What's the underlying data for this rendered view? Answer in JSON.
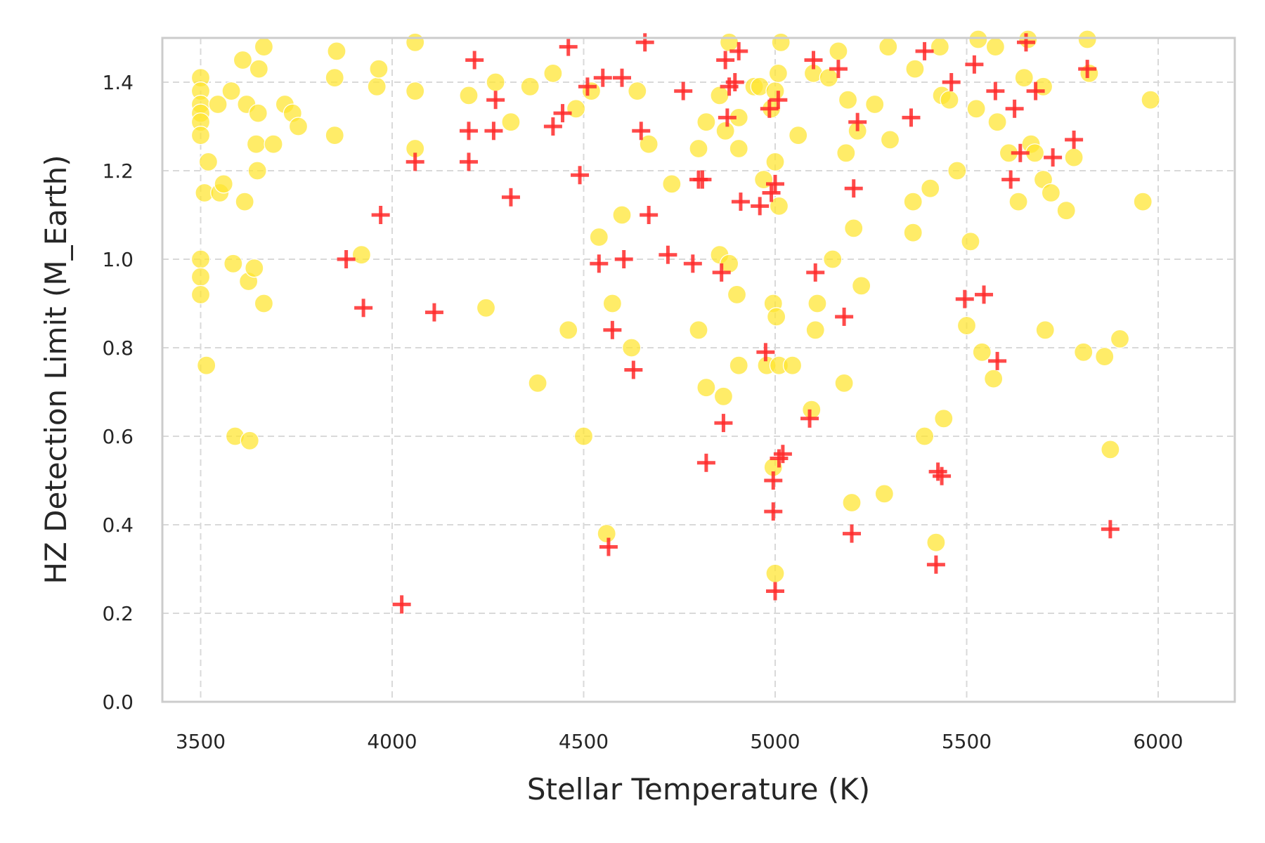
{
  "chart_data": {
    "type": "scatter",
    "xlabel": "Stellar Temperature (K)",
    "ylabel": "HZ Detection Limit (M_Earth)",
    "xlim": [
      3400,
      6200
    ],
    "ylim": [
      0.0,
      1.5
    ],
    "xticks": [
      3500,
      4000,
      4500,
      5000,
      5500,
      6000
    ],
    "yticks": [
      0.0,
      0.2,
      0.4,
      0.6,
      0.8,
      1.0,
      1.2,
      1.4
    ],
    "ytick_labels": [
      "0.0",
      "0.2",
      "0.4",
      "0.6",
      "0.8",
      "1.0",
      "1.2",
      "1.4"
    ],
    "grid": true,
    "series": [
      {
        "marker": "circle",
        "color": "#ffe52e",
        "points": [
          [
            3500,
            1.41
          ],
          [
            3500,
            1.38
          ],
          [
            3500,
            1.35
          ],
          [
            3500,
            1.33
          ],
          [
            3500,
            1.31
          ],
          [
            3500,
            1.28
          ],
          [
            3500,
            1.0
          ],
          [
            3500,
            0.96
          ],
          [
            3500,
            0.92
          ],
          [
            3510,
            1.15
          ],
          [
            3515,
            0.76
          ],
          [
            3520,
            1.22
          ],
          [
            3545,
            1.35
          ],
          [
            3550,
            1.15
          ],
          [
            3560,
            1.17
          ],
          [
            3580,
            1.38
          ],
          [
            3585,
            0.99
          ],
          [
            3590,
            0.6
          ],
          [
            3610,
            1.45
          ],
          [
            3615,
            1.13
          ],
          [
            3620,
            1.35
          ],
          [
            3625,
            0.95
          ],
          [
            3628,
            0.59
          ],
          [
            3640,
            0.98
          ],
          [
            3645,
            1.26
          ],
          [
            3648,
            1.2
          ],
          [
            3650,
            1.33
          ],
          [
            3652,
            1.43
          ],
          [
            3665,
            1.48
          ],
          [
            3665,
            0.9
          ],
          [
            3690,
            1.26
          ],
          [
            3720,
            1.35
          ],
          [
            3740,
            1.33
          ],
          [
            3755,
            1.3
          ],
          [
            3850,
            1.41
          ],
          [
            3855,
            1.47
          ],
          [
            3850,
            1.28
          ],
          [
            3920,
            1.01
          ],
          [
            3960,
            1.39
          ],
          [
            3965,
            1.43
          ],
          [
            4060,
            1.49
          ],
          [
            4060,
            1.38
          ],
          [
            4060,
            1.25
          ],
          [
            4200,
            1.37
          ],
          [
            4245,
            0.89
          ],
          [
            4270,
            1.4
          ],
          [
            4310,
            1.31
          ],
          [
            4360,
            1.39
          ],
          [
            4380,
            0.72
          ],
          [
            4420,
            1.42
          ],
          [
            4460,
            0.84
          ],
          [
            4480,
            1.34
          ],
          [
            4500,
            0.6
          ],
          [
            4520,
            1.38
          ],
          [
            4540,
            1.05
          ],
          [
            4560,
            0.38
          ],
          [
            4575,
            0.9
          ],
          [
            4600,
            1.1
          ],
          [
            4625,
            0.8
          ],
          [
            4640,
            1.38
          ],
          [
            4670,
            1.26
          ],
          [
            4730,
            1.17
          ],
          [
            4800,
            0.84
          ],
          [
            4800,
            1.25
          ],
          [
            4820,
            1.31
          ],
          [
            4820,
            0.71
          ],
          [
            4855,
            1.37
          ],
          [
            4855,
            1.01
          ],
          [
            4865,
            0.69
          ],
          [
            4870,
            1.29
          ],
          [
            4880,
            1.49
          ],
          [
            4880,
            0.99
          ],
          [
            4900,
            0.92
          ],
          [
            4905,
            1.25
          ],
          [
            4905,
            1.32
          ],
          [
            4905,
            0.76
          ],
          [
            4945,
            1.39
          ],
          [
            4960,
            1.39
          ],
          [
            4970,
            1.18
          ],
          [
            4978,
            0.76
          ],
          [
            4990,
            1.34
          ],
          [
            4995,
            0.9
          ],
          [
            4995,
            0.53
          ],
          [
            5000,
            1.38
          ],
          [
            5000,
            1.22
          ],
          [
            5000,
            0.29
          ],
          [
            5003,
            0.87
          ],
          [
            5008,
            1.42
          ],
          [
            5010,
            1.12
          ],
          [
            5010,
            0.76
          ],
          [
            5015,
            1.49
          ],
          [
            5045,
            0.76
          ],
          [
            5060,
            1.28
          ],
          [
            5095,
            0.66
          ],
          [
            5100,
            1.42
          ],
          [
            5105,
            0.84
          ],
          [
            5110,
            0.9
          ],
          [
            5140,
            1.41
          ],
          [
            5150,
            1.0
          ],
          [
            5165,
            1.47
          ],
          [
            5180,
            0.72
          ],
          [
            5185,
            1.24
          ],
          [
            5190,
            1.36
          ],
          [
            5200,
            0.45
          ],
          [
            5205,
            1.07
          ],
          [
            5215,
            1.29
          ],
          [
            5225,
            0.94
          ],
          [
            5260,
            1.35
          ],
          [
            5285,
            0.47
          ],
          [
            5295,
            1.48
          ],
          [
            5300,
            1.27
          ],
          [
            5360,
            1.06
          ],
          [
            5360,
            1.13
          ],
          [
            5365,
            1.43
          ],
          [
            5390,
            0.6
          ],
          [
            5405,
            1.16
          ],
          [
            5420,
            0.36
          ],
          [
            5430,
            1.48
          ],
          [
            5435,
            1.37
          ],
          [
            5440,
            0.64
          ],
          [
            5455,
            1.36
          ],
          [
            5475,
            1.2
          ],
          [
            5500,
            0.85
          ],
          [
            5510,
            1.04
          ],
          [
            5525,
            1.34
          ],
          [
            5530,
            1.5
          ],
          [
            5540,
            0.79
          ],
          [
            5570,
            0.73
          ],
          [
            5575,
            1.48
          ],
          [
            5580,
            1.31
          ],
          [
            5610,
            1.24
          ],
          [
            5635,
            1.13
          ],
          [
            5650,
            1.41
          ],
          [
            5660,
            1.5
          ],
          [
            5668,
            1.26
          ],
          [
            5678,
            1.24
          ],
          [
            5700,
            1.39
          ],
          [
            5700,
            1.18
          ],
          [
            5705,
            0.84
          ],
          [
            5720,
            1.15
          ],
          [
            5760,
            1.11
          ],
          [
            5780,
            1.23
          ],
          [
            5805,
            0.79
          ],
          [
            5815,
            1.5
          ],
          [
            5820,
            1.42
          ],
          [
            5860,
            0.78
          ],
          [
            5875,
            0.57
          ],
          [
            5900,
            0.82
          ],
          [
            5960,
            1.13
          ],
          [
            5980,
            1.36
          ]
        ]
      },
      {
        "marker": "plus",
        "color": "#ff2a2a",
        "points": [
          [
            3880,
            1.0
          ],
          [
            3925,
            0.89
          ],
          [
            3970,
            1.1
          ],
          [
            4025,
            0.22
          ],
          [
            4060,
            1.22
          ],
          [
            4110,
            0.88
          ],
          [
            4200,
            1.29
          ],
          [
            4200,
            1.22
          ],
          [
            4215,
            1.45
          ],
          [
            4265,
            1.29
          ],
          [
            4270,
            1.36
          ],
          [
            4310,
            1.14
          ],
          [
            4420,
            1.3
          ],
          [
            4445,
            1.33
          ],
          [
            4460,
            1.48
          ],
          [
            4490,
            1.19
          ],
          [
            4510,
            1.39
          ],
          [
            4540,
            0.99
          ],
          [
            4550,
            1.41
          ],
          [
            4565,
            0.35
          ],
          [
            4575,
            0.84
          ],
          [
            4600,
            1.41
          ],
          [
            4605,
            1.0
          ],
          [
            4630,
            0.75
          ],
          [
            4650,
            1.29
          ],
          [
            4660,
            1.49
          ],
          [
            4670,
            1.1
          ],
          [
            4720,
            1.01
          ],
          [
            4760,
            1.38
          ],
          [
            4785,
            0.99
          ],
          [
            4800,
            1.18
          ],
          [
            4810,
            1.18
          ],
          [
            4820,
            0.54
          ],
          [
            4860,
            0.97
          ],
          [
            4865,
            0.63
          ],
          [
            4870,
            1.45
          ],
          [
            4875,
            1.32
          ],
          [
            4880,
            1.39
          ],
          [
            4895,
            1.4
          ],
          [
            4905,
            1.47
          ],
          [
            4910,
            1.13
          ],
          [
            4960,
            1.12
          ],
          [
            4975,
            0.79
          ],
          [
            4985,
            1.34
          ],
          [
            4990,
            1.15
          ],
          [
            4995,
            0.43
          ],
          [
            4995,
            0.5
          ],
          [
            5000,
            1.17
          ],
          [
            5000,
            0.25
          ],
          [
            5008,
            1.36
          ],
          [
            5010,
            0.55
          ],
          [
            5020,
            0.56
          ],
          [
            5090,
            0.64
          ],
          [
            5100,
            1.45
          ],
          [
            5105,
            0.97
          ],
          [
            5165,
            1.43
          ],
          [
            5180,
            0.87
          ],
          [
            5200,
            0.38
          ],
          [
            5205,
            1.16
          ],
          [
            5215,
            1.31
          ],
          [
            5355,
            1.32
          ],
          [
            5390,
            1.47
          ],
          [
            5420,
            0.31
          ],
          [
            5425,
            0.52
          ],
          [
            5435,
            0.51
          ],
          [
            5460,
            1.4
          ],
          [
            5495,
            0.91
          ],
          [
            5520,
            1.44
          ],
          [
            5545,
            0.92
          ],
          [
            5575,
            1.38
          ],
          [
            5580,
            0.77
          ],
          [
            5615,
            1.18
          ],
          [
            5625,
            1.34
          ],
          [
            5640,
            1.24
          ],
          [
            5655,
            1.49
          ],
          [
            5680,
            1.38
          ],
          [
            5725,
            1.23
          ],
          [
            5780,
            1.27
          ],
          [
            5815,
            1.43
          ],
          [
            5875,
            0.39
          ]
        ]
      }
    ]
  }
}
